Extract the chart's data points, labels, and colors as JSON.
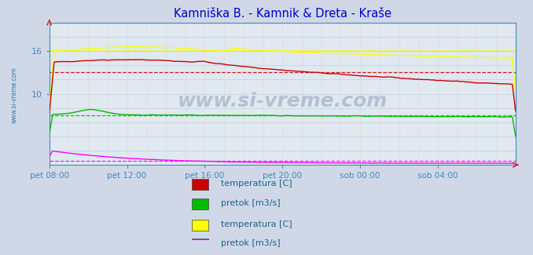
{
  "title": "Kamniška B. - Kamnik & Dreta - Kraše",
  "title_color": "#0000cc",
  "bg_color": "#d0d8e8",
  "plot_bg_color": "#e0e8f0",
  "xlabel_color": "#4488bb",
  "ylim": [
    0,
    20
  ],
  "ytick_vals": [
    10,
    16
  ],
  "ytick_labels": [
    "10",
    "16"
  ],
  "xtick_labels": [
    "pet 08:00",
    "pet 12:00",
    "pet 16:00",
    "pet 20:00",
    "sob 00:00",
    "sob 04:00"
  ],
  "n_points": 288,
  "temp1_color": "#cc0000",
  "temp1_mean": 13.0,
  "flow1_color": "#00bb00",
  "flow1_mean": 7.0,
  "temp2_color": "#ffff00",
  "temp2_mean": 16.1,
  "flow2_color": "#ff00ff",
  "flow2_mean": 0.55,
  "watermark": "www.si-vreme.com",
  "legend_items": [
    {
      "label": "temperatura [C]",
      "color": "#cc0000"
    },
    {
      "label": "pretok [m3/s]",
      "color": "#00bb00"
    },
    {
      "label": "temperatura [C]",
      "color": "#ffff00"
    },
    {
      "label": "pretok [m3/s]",
      "color": "#ff00ff"
    }
  ]
}
